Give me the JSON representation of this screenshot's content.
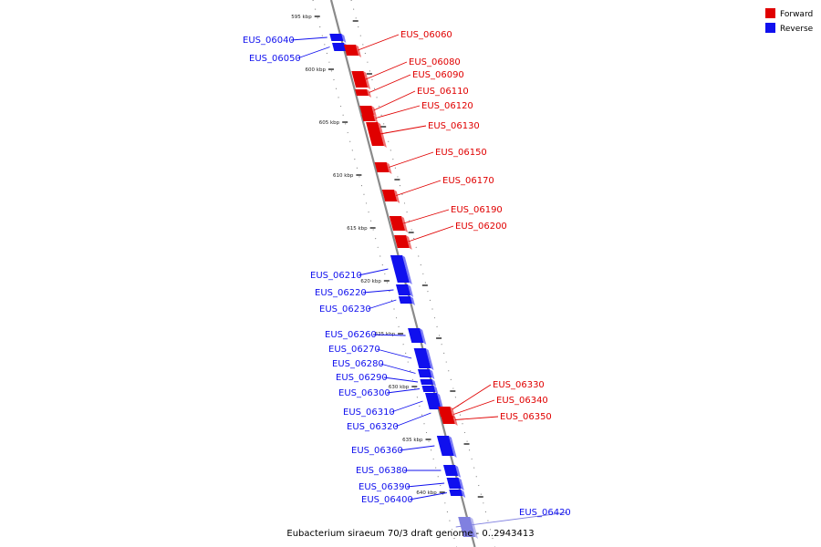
{
  "colors": {
    "forward": "#e00000",
    "reverse": "#1010ee",
    "reverse_faded": "#8080e0",
    "axis": "#888888"
  },
  "legend": {
    "forward_label": "Forward",
    "reverse_label": "Reverse"
  },
  "footer": {
    "caption": "Eubacterium siraeum 70/3 draft genome - 0..2943413"
  },
  "ticks": [
    {
      "label": "595 kbp",
      "position_kbp": 595
    },
    {
      "label": "600 kbp",
      "position_kbp": 600
    },
    {
      "label": "605 kbp",
      "position_kbp": 605
    },
    {
      "label": "610 kbp",
      "position_kbp": 610
    },
    {
      "label": "615 kbp",
      "position_kbp": 615
    },
    {
      "label": "620 kbp",
      "position_kbp": 620
    },
    {
      "label": "625 kbp",
      "position_kbp": 625
    },
    {
      "label": "630 kbp",
      "position_kbp": 630
    },
    {
      "label": "635 kbp",
      "position_kbp": 635
    },
    {
      "label": "640 kbp",
      "position_kbp": 640
    }
  ],
  "genes": [
    {
      "name": "EUS_06040",
      "strand": "reverse"
    },
    {
      "name": "EUS_06050",
      "strand": "reverse"
    },
    {
      "name": "EUS_06060",
      "strand": "forward"
    },
    {
      "name": "EUS_06080",
      "strand": "forward"
    },
    {
      "name": "EUS_06090",
      "strand": "forward"
    },
    {
      "name": "EUS_06110",
      "strand": "forward"
    },
    {
      "name": "EUS_06120",
      "strand": "forward"
    },
    {
      "name": "EUS_06130",
      "strand": "forward"
    },
    {
      "name": "EUS_06150",
      "strand": "forward"
    },
    {
      "name": "EUS_06170",
      "strand": "forward"
    },
    {
      "name": "EUS_06190",
      "strand": "forward"
    },
    {
      "name": "EUS_06200",
      "strand": "forward"
    },
    {
      "name": "EUS_06210",
      "strand": "reverse"
    },
    {
      "name": "EUS_06220",
      "strand": "reverse"
    },
    {
      "name": "EUS_06230",
      "strand": "reverse"
    },
    {
      "name": "EUS_06260",
      "strand": "reverse"
    },
    {
      "name": "EUS_06270",
      "strand": "reverse"
    },
    {
      "name": "EUS_06280",
      "strand": "reverse"
    },
    {
      "name": "EUS_06290",
      "strand": "reverse"
    },
    {
      "name": "EUS_06300",
      "strand": "reverse"
    },
    {
      "name": "EUS_06310",
      "strand": "reverse"
    },
    {
      "name": "EUS_06320",
      "strand": "reverse"
    },
    {
      "name": "EUS_06330",
      "strand": "forward"
    },
    {
      "name": "EUS_06340",
      "strand": "forward"
    },
    {
      "name": "EUS_06350",
      "strand": "forward"
    },
    {
      "name": "EUS_06360",
      "strand": "reverse"
    },
    {
      "name": "EUS_06380",
      "strand": "reverse"
    },
    {
      "name": "EUS_06390",
      "strand": "reverse"
    },
    {
      "name": "EUS_06400",
      "strand": "reverse"
    },
    {
      "name": "EUS_06420",
      "strand": "reverse"
    }
  ]
}
